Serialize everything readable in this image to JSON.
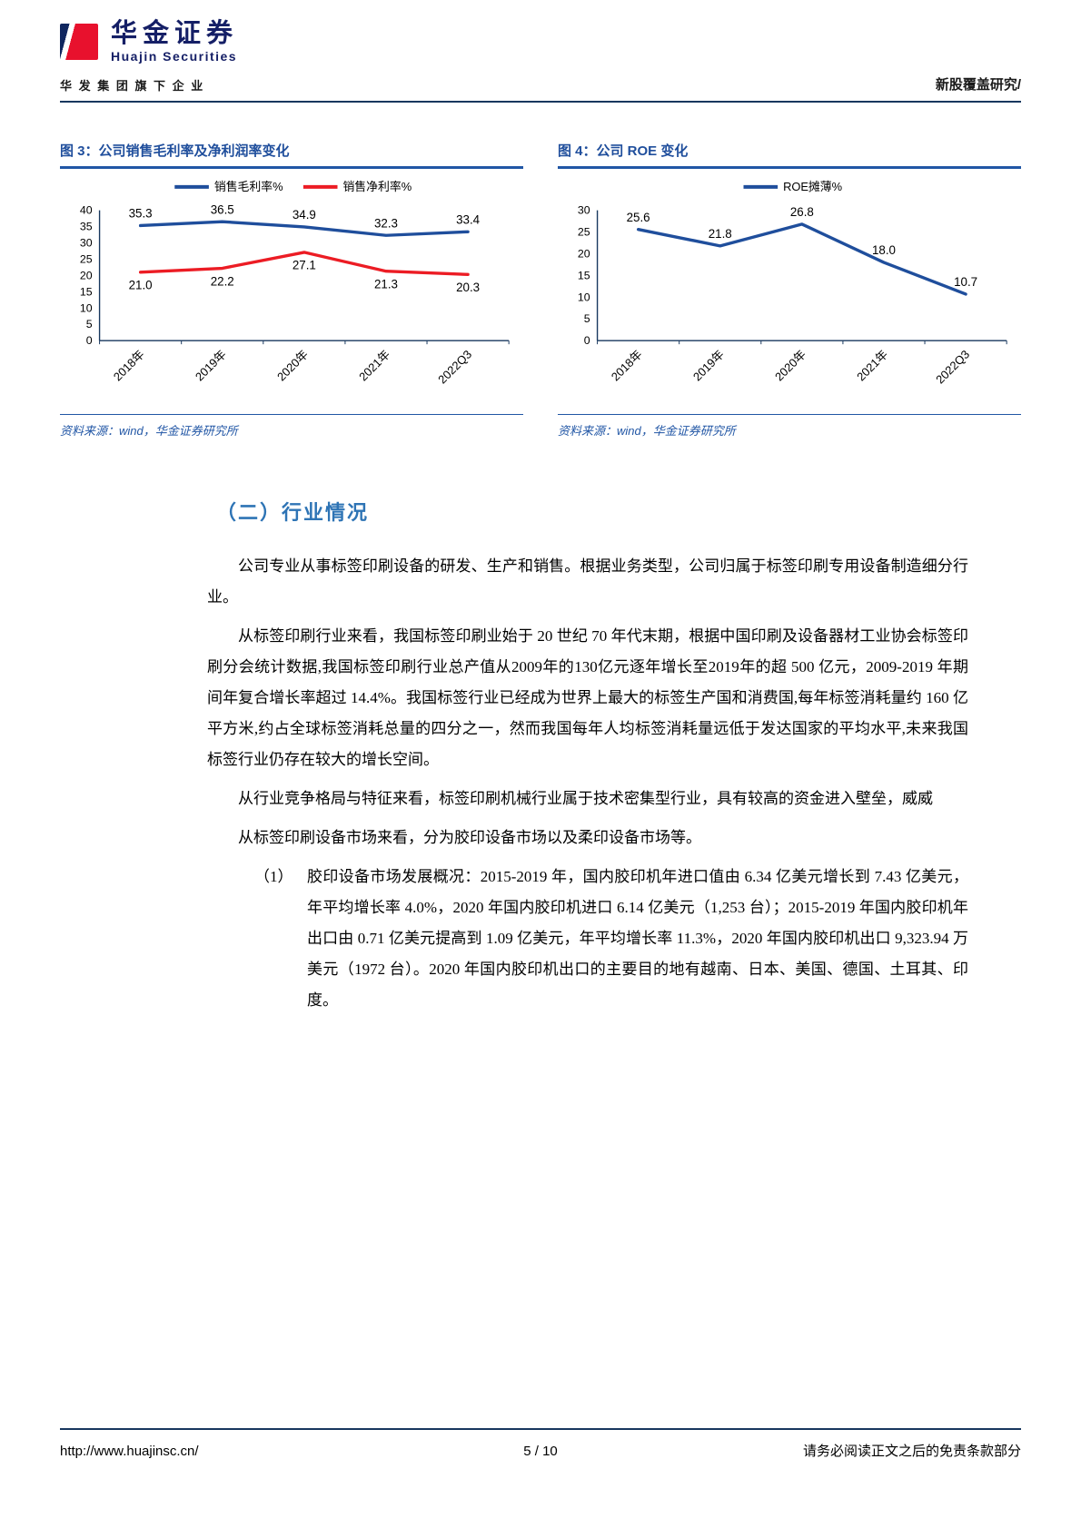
{
  "header": {
    "brand_cn": "华金证券",
    "brand_en": "Huajin Securities",
    "tagline": "华 发 集 团 旗 下 企 业",
    "report_type": "新股覆盖研究/"
  },
  "chart_data": [
    {
      "type": "line",
      "title": "图 3：公司销售毛利率及净利润率变化",
      "source": "资料来源：wind，华金证券研究所",
      "categories": [
        "2018年",
        "2019年",
        "2020年",
        "2021年",
        "2022Q3"
      ],
      "series": [
        {
          "name": "销售毛利率%",
          "color": "#1F4E9C",
          "values": [
            35.3,
            36.5,
            34.9,
            32.3,
            33.4
          ],
          "label_position": "above"
        },
        {
          "name": "销售净利率%",
          "color": "#EC1C24",
          "values": [
            21.0,
            22.2,
            27.1,
            21.3,
            20.3
          ],
          "label_position": "below"
        }
      ],
      "ylim": [
        0,
        40
      ],
      "ytick_step": 5,
      "legend_position": "top",
      "grid": false
    },
    {
      "type": "line",
      "title": "图 4：公司 ROE 变化",
      "source": "资料来源：wind，华金证券研究所",
      "categories": [
        "2018年",
        "2019年",
        "2020年",
        "2021年",
        "2022Q3"
      ],
      "series": [
        {
          "name": "ROE摊薄%",
          "color": "#1F4E9C",
          "values": [
            25.6,
            21.8,
            26.8,
            18.0,
            10.7
          ],
          "label_position": "above"
        }
      ],
      "ylim": [
        0,
        30
      ],
      "ytick_step": 5,
      "legend_position": "top",
      "grid": false
    }
  ],
  "section": {
    "heading": "（二）行业情况",
    "paragraphs": [
      "公司专业从事标签印刷设备的研发、生产和销售。根据业务类型，公司归属于标签印刷专用设备制造细分行业。",
      "从标签印刷行业来看，我国标签印刷业始于 20 世纪 70 年代末期，根据中国印刷及设备器材工业协会标签印刷分会统计数据,我国标签印刷行业总产值从2009年的130亿元逐年增长至2019年的超 500 亿元，2009-2019 年期间年复合增长率超过 14.4%。我国标签行业已经成为世界上最大的标签生产国和消费国,每年标签消耗量约 160 亿平方米,约占全球标签消耗总量的四分之一，然而我国每年人均标签消耗量远低于发达国家的平均水平,未来我国标签行业仍存在较大的增长空间。",
      "从行业竞争格局与特征来看，标签印刷机械行业属于技术密集型行业，具有较高的资金进入壁垒，威威",
      "从标签印刷设备市场来看，分为胶印设备市场以及柔印设备市场等。"
    ],
    "list": [
      {
        "marker": "（1）",
        "text": "胶印设备市场发展概况：2015-2019 年，国内胶印机年进口值由 6.34 亿美元增长到 7.43 亿美元，年平均增长率 4.0%，2020 年国内胶印机进口 6.14 亿美元（1,253 台）；2015-2019 年国内胶印机年出口由 0.71 亿美元提高到 1.09 亿美元，年平均增长率 11.3%，2020 年国内胶印机出口 9,323.94 万美元（1972 台）。2020 年国内胶印机出口的主要目的地有越南、日本、美国、德国、土耳其、印度。"
      }
    ]
  },
  "footer": {
    "url": "http://www.huajinsc.cn/",
    "page": "5 / 10",
    "disclaimer": "请务必阅读正文之后的免责条款部分"
  }
}
